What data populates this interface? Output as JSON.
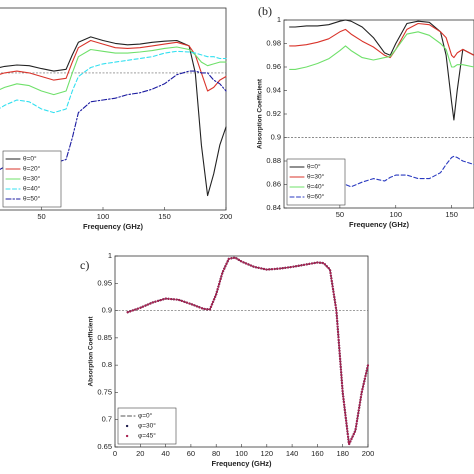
{
  "chart_data": [
    {
      "type": "line",
      "xlabel": "Frequency (GHz)",
      "xlim": [
        0,
        200
      ],
      "ylim": [
        0.52,
        1.08
      ],
      "xticks": [
        50,
        100,
        150,
        200
      ],
      "hline": 0.9,
      "legend": "lower left",
      "x": [
        0,
        10,
        20,
        30,
        40,
        50,
        60,
        70,
        75,
        80,
        90,
        100,
        110,
        120,
        130,
        140,
        150,
        160,
        170,
        175,
        180,
        185,
        190,
        195,
        200
      ],
      "series": [
        {
          "name": "θ=0°",
          "color": "#222222",
          "style": "solid",
          "values": [
            0.905,
            0.91,
            0.918,
            0.922,
            0.92,
            0.912,
            0.905,
            0.91,
            0.95,
            0.985,
            1.0,
            0.99,
            0.982,
            0.978,
            0.98,
            0.985,
            0.988,
            0.99,
            0.975,
            0.9,
            0.7,
            0.56,
            0.62,
            0.7,
            0.75
          ]
        },
        {
          "name": "θ=20°",
          "color": "#d9342b",
          "style": "solid",
          "values": [
            0.88,
            0.89,
            0.9,
            0.905,
            0.9,
            0.89,
            0.88,
            0.885,
            0.93,
            0.97,
            0.99,
            0.98,
            0.97,
            0.968,
            0.97,
            0.975,
            0.98,
            0.985,
            0.975,
            0.95,
            0.9,
            0.85,
            0.86,
            0.88,
            0.89
          ]
        },
        {
          "name": "θ=30°",
          "color": "#6fe06a",
          "style": "solid",
          "values": [
            0.83,
            0.845,
            0.86,
            0.87,
            0.865,
            0.85,
            0.84,
            0.85,
            0.9,
            0.945,
            0.965,
            0.96,
            0.955,
            0.955,
            0.958,
            0.962,
            0.968,
            0.972,
            0.965,
            0.95,
            0.93,
            0.92,
            0.925,
            0.93,
            0.93
          ]
        },
        {
          "name": "θ=40°",
          "color": "#33e0f0",
          "style": "dashed",
          "values": [
            0.77,
            0.79,
            0.81,
            0.825,
            0.82,
            0.8,
            0.79,
            0.8,
            0.85,
            0.89,
            0.915,
            0.925,
            0.93,
            0.935,
            0.94,
            0.945,
            0.955,
            0.96,
            0.958,
            0.955,
            0.95,
            0.945,
            0.945,
            0.94,
            0.94
          ]
        },
        {
          "name": "θ=50°",
          "color": "#1a1aa0",
          "style": "dashdot",
          "values": [
            0.6,
            0.62,
            0.64,
            0.655,
            0.66,
            0.655,
            0.65,
            0.66,
            0.72,
            0.79,
            0.82,
            0.825,
            0.83,
            0.84,
            0.845,
            0.855,
            0.87,
            0.895,
            0.905,
            0.905,
            0.9,
            0.9,
            0.88,
            0.87,
            0.85
          ]
        }
      ]
    },
    {
      "type": "line",
      "label": "(b)",
      "xlabel": "Frequency (GHz)",
      "ylabel": "Absorption Coefficient",
      "xlim": [
        0,
        170
      ],
      "ylim": [
        0.84,
        1
      ],
      "xticks": [
        50,
        100,
        150
      ],
      "yticks": [
        0.84,
        0.86,
        0.88,
        0.9,
        0.92,
        0.94,
        0.96,
        0.98,
        1
      ],
      "hline": 0.9,
      "legend": "lower left",
      "x": [
        5,
        10,
        20,
        30,
        40,
        50,
        55,
        60,
        70,
        80,
        90,
        95,
        100,
        110,
        120,
        130,
        140,
        145,
        150,
        152,
        155,
        160,
        170
      ],
      "series": [
        {
          "name": "θ=0°",
          "color": "#222222",
          "style": "solid",
          "values": [
            0.994,
            0.994,
            0.995,
            0.995,
            0.996,
            0.999,
            1.0,
            0.999,
            0.994,
            0.985,
            0.972,
            0.97,
            0.98,
            0.997,
            0.999,
            0.998,
            0.99,
            0.97,
            0.93,
            0.915,
            0.94,
            0.975,
            0.97
          ]
        },
        {
          "name": "θ=30°",
          "color": "#d9342b",
          "style": "solid",
          "values": [
            0.978,
            0.978,
            0.979,
            0.981,
            0.984,
            0.99,
            0.992,
            0.988,
            0.982,
            0.977,
            0.97,
            0.968,
            0.975,
            0.992,
            0.997,
            0.996,
            0.99,
            0.985,
            0.97,
            0.968,
            0.972,
            0.975,
            0.97
          ]
        },
        {
          "name": "θ=40°",
          "color": "#6fe06a",
          "style": "solid",
          "values": [
            0.958,
            0.958,
            0.96,
            0.963,
            0.967,
            0.974,
            0.978,
            0.974,
            0.968,
            0.966,
            0.968,
            0.969,
            0.975,
            0.988,
            0.99,
            0.987,
            0.98,
            0.975,
            0.96,
            0.96,
            0.962,
            0.962,
            0.96
          ]
        },
        {
          "name": "θ=60°",
          "color": "#2a3ac0",
          "style": "dashed",
          "values": [
            0.845,
            0.846,
            0.852,
            0.858,
            0.862,
            0.865,
            0.86,
            0.858,
            0.862,
            0.865,
            0.863,
            0.866,
            0.868,
            0.868,
            0.865,
            0.865,
            0.87,
            0.877,
            0.883,
            0.884,
            0.883,
            0.88,
            0.877
          ]
        }
      ]
    },
    {
      "type": "line",
      "label": "c)",
      "xlabel": "Frequency (GHz)",
      "ylabel": "Absorption Coefficient",
      "xlim": [
        0,
        200
      ],
      "ylim": [
        0.65,
        1
      ],
      "xticks": [
        0,
        20,
        40,
        60,
        80,
        100,
        120,
        140,
        160,
        180,
        200
      ],
      "yticks": [
        0.65,
        0.7,
        0.75,
        0.8,
        0.85,
        0.9,
        0.95,
        1
      ],
      "hline": 0.9,
      "legend": "lower left",
      "x": [
        10,
        20,
        30,
        40,
        50,
        60,
        70,
        75,
        80,
        85,
        90,
        95,
        100,
        110,
        120,
        130,
        140,
        150,
        160,
        165,
        170,
        175,
        180,
        185,
        190,
        195,
        200
      ],
      "series": [
        {
          "name": "φ=0°",
          "color": "#555555",
          "style": "dashed",
          "values": [
            0.897,
            0.905,
            0.915,
            0.922,
            0.92,
            0.912,
            0.903,
            0.902,
            0.93,
            0.97,
            0.995,
            0.997,
            0.99,
            0.98,
            0.975,
            0.977,
            0.98,
            0.984,
            0.988,
            0.987,
            0.975,
            0.9,
            0.75,
            0.655,
            0.68,
            0.75,
            0.8
          ]
        },
        {
          "name": "φ=30°",
          "color": "#1a1a4a",
          "style": "dots",
          "values": [
            0.897,
            0.905,
            0.915,
            0.922,
            0.92,
            0.912,
            0.903,
            0.902,
            0.93,
            0.97,
            0.995,
            0.997,
            0.99,
            0.98,
            0.975,
            0.977,
            0.98,
            0.984,
            0.988,
            0.987,
            0.975,
            0.9,
            0.75,
            0.655,
            0.68,
            0.75,
            0.8
          ]
        },
        {
          "name": "φ=45°",
          "color": "#a8204f",
          "style": "dots",
          "values": [
            0.897,
            0.905,
            0.915,
            0.922,
            0.92,
            0.912,
            0.903,
            0.902,
            0.93,
            0.97,
            0.995,
            0.997,
            0.99,
            0.98,
            0.975,
            0.977,
            0.98,
            0.984,
            0.988,
            0.987,
            0.975,
            0.9,
            0.75,
            0.655,
            0.68,
            0.75,
            0.8
          ]
        }
      ]
    }
  ]
}
